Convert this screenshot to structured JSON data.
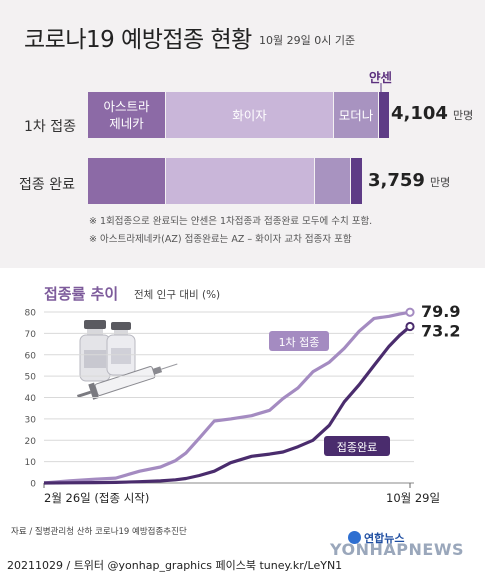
{
  "header": {
    "title": "코로나19 예방접종 현황",
    "date": "10월 29일 0시 기준"
  },
  "breakdown": {
    "janssen_label": "얀센",
    "rows": [
      {
        "label": "1차 접종",
        "total": "4,104",
        "unit": "만명",
        "segments": [
          {
            "name": "아스트라\n제네카",
            "share": 0.263,
            "color": "#8c6aa6"
          },
          {
            "name": "화이자",
            "share": 0.565,
            "color": "#c9b6d9"
          },
          {
            "name": "모더나",
            "share": 0.152,
            "color": "#a893c0"
          },
          {
            "name": "",
            "share": 0.037,
            "color": "#5e3c86"
          }
        ]
      },
      {
        "label": "접종 완료",
        "total": "3,759",
        "unit": "만명",
        "segments": [
          {
            "name": "",
            "share": 0.263,
            "color": "#8c6aa6"
          },
          {
            "name": "",
            "share": 0.499,
            "color": "#c9b6d9"
          },
          {
            "name": "",
            "share": 0.12,
            "color": "#a893c0"
          },
          {
            "name": "",
            "share": 0.04,
            "color": "#5e3c86"
          }
        ]
      }
    ],
    "notes": [
      "※ 1회접종으로 완료되는 얀센은 1차접종과 접종완료 모두에 수치 포함.",
      "※ 아스트라제네카(AZ) 접종완료는 AZ – 화이자 교차 접종자 포함"
    ]
  },
  "trend": {
    "title": "접종률 추이",
    "subtitle": "전체 인구 대비 (%)"
  },
  "chart_data": {
    "type": "line",
    "x_start_label": "2월 26일 (접종 시작)",
    "x_end_label": "10월 29일",
    "x": [
      "2021-02-26",
      "2021-03-15",
      "2021-04-01",
      "2021-04-15",
      "2021-05-01",
      "2021-05-15",
      "2021-05-25",
      "2021-06-01",
      "2021-06-10",
      "2021-06-20",
      "2021-07-01",
      "2021-07-15",
      "2021-07-27",
      "2021-08-05",
      "2021-08-15",
      "2021-08-25",
      "2021-09-05",
      "2021-09-15",
      "2021-09-25",
      "2021-10-05",
      "2021-10-15",
      "2021-10-22",
      "2021-10-29"
    ],
    "ylim": [
      0,
      80
    ],
    "yticks": [
      0,
      10,
      20,
      30,
      40,
      50,
      60,
      70,
      80
    ],
    "grid": true,
    "series": [
      {
        "name": "1차 접종",
        "color": "#a48bc1",
        "end_label": "79.9",
        "values": [
          0,
          1.0,
          1.8,
          2.3,
          5.5,
          7.5,
          10.5,
          14.0,
          21.0,
          29.0,
          30.0,
          31.5,
          34.0,
          39.5,
          44.5,
          52.0,
          56.5,
          63.0,
          71.0,
          77.0,
          78.0,
          79.0,
          79.9
        ]
      },
      {
        "name": "접종완료",
        "color": "#4a2c6d",
        "end_label": "73.2",
        "values": [
          0,
          0.1,
          0.2,
          0.3,
          0.6,
          1.0,
          1.5,
          2.1,
          3.5,
          5.5,
          9.5,
          12.5,
          13.5,
          14.5,
          17.0,
          20.0,
          27.0,
          38.0,
          46.0,
          55.0,
          64.0,
          69.0,
          73.2
        ]
      }
    ]
  },
  "footer": {
    "source": "자료 / 질병관리청 산하 코로나19 예방접종추진단",
    "credit": "20211029 / 트위터 @yonhap_graphics  페이스북 tuney.kr/LeYN1",
    "logo": "연합뉴스",
    "watermark": "YONHAPNEWS"
  }
}
